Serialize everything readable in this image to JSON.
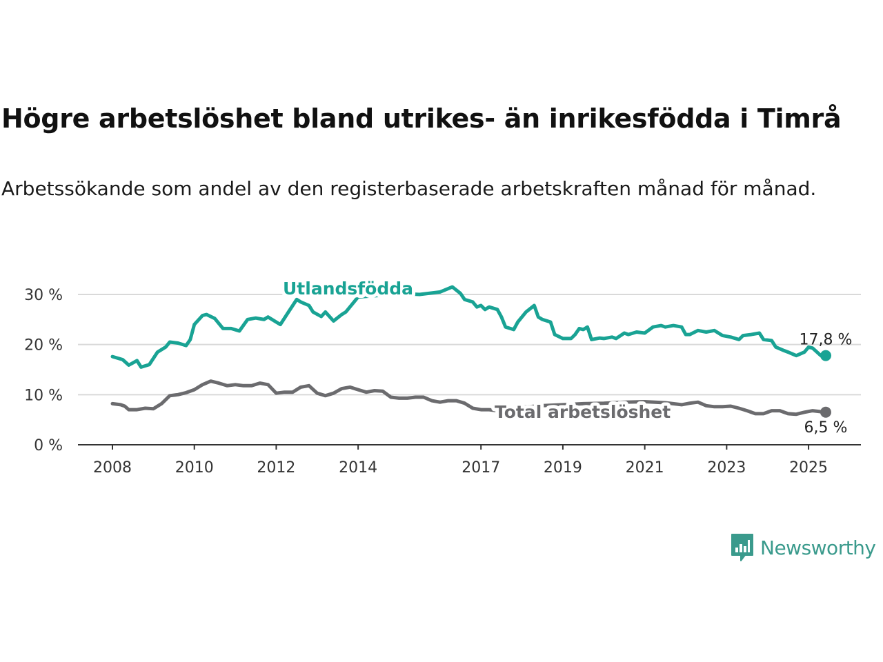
{
  "header": {
    "title": "Högre arbetslöshet bland utrikes- än inrikesfödda i Timrå",
    "subtitle": "Arbetssökande som andel av den registerbaserade arbetskraften månad för månad."
  },
  "brand": {
    "name": "Newsworthy",
    "icon": "newsworthy-logo-icon",
    "color": "#3a9a8c"
  },
  "chart_data": {
    "type": "line",
    "title": "Högre arbetslöshet bland utrikes- än inrikesfödda i Timrå",
    "subtitle": "Arbetssökande som andel av den registerbaserade arbetskraften månad för månad.",
    "xlabel": "",
    "ylabel": "",
    "x_range": [
      2008.0,
      2025.42
    ],
    "ylim": [
      0,
      30
    ],
    "x_ticks": [
      {
        "value": 2008,
        "label": "2008"
      },
      {
        "value": 2010,
        "label": "2010"
      },
      {
        "value": 2012,
        "label": "2012"
      },
      {
        "value": 2014,
        "label": "2014"
      },
      {
        "value": 2017,
        "label": "2017"
      },
      {
        "value": 2019,
        "label": "2019"
      },
      {
        "value": 2021,
        "label": "2021"
      },
      {
        "value": 2023,
        "label": "2023"
      },
      {
        "value": 2025,
        "label": "2025"
      }
    ],
    "y_ticks": [
      {
        "value": 0,
        "label": "0 %"
      },
      {
        "value": 10,
        "label": "10 %"
      },
      {
        "value": 20,
        "label": "20 %"
      },
      {
        "value": 30,
        "label": "30 %"
      }
    ],
    "grid": "horizontal",
    "series": [
      {
        "name": "Utlandsfödda",
        "color": "#19a394",
        "end_label": "17,8 %",
        "points": [
          [
            2008.0,
            17.6
          ],
          [
            2008.25,
            17.0
          ],
          [
            2008.4,
            15.9
          ],
          [
            2008.6,
            16.8
          ],
          [
            2008.7,
            15.5
          ],
          [
            2008.9,
            16.0
          ],
          [
            2009.1,
            18.5
          ],
          [
            2009.3,
            19.5
          ],
          [
            2009.4,
            20.5
          ],
          [
            2009.6,
            20.3
          ],
          [
            2009.8,
            19.8
          ],
          [
            2009.9,
            21.0
          ],
          [
            2010.0,
            24.0
          ],
          [
            2010.2,
            25.8
          ],
          [
            2010.3,
            26.0
          ],
          [
            2010.5,
            25.2
          ],
          [
            2010.7,
            23.2
          ],
          [
            2010.9,
            23.2
          ],
          [
            2011.1,
            22.7
          ],
          [
            2011.3,
            25.0
          ],
          [
            2011.5,
            25.3
          ],
          [
            2011.7,
            25.0
          ],
          [
            2011.8,
            25.5
          ],
          [
            2012.0,
            24.5
          ],
          [
            2012.1,
            24.0
          ],
          [
            2012.3,
            26.5
          ],
          [
            2012.5,
            29.0
          ],
          [
            2012.6,
            28.5
          ],
          [
            2012.8,
            27.8
          ],
          [
            2012.9,
            26.5
          ],
          [
            2013.1,
            25.6
          ],
          [
            2013.2,
            26.5
          ],
          [
            2013.4,
            24.7
          ],
          [
            2013.6,
            26.0
          ],
          [
            2013.7,
            26.5
          ],
          [
            2013.9,
            28.5
          ],
          [
            2014.0,
            29.5
          ],
          [
            2014.5,
            29.8
          ],
          [
            2015.0,
            30.2
          ],
          [
            2015.5,
            30.0
          ],
          [
            2016.0,
            30.5
          ],
          [
            2016.3,
            31.5
          ],
          [
            2016.5,
            30.2
          ],
          [
            2016.6,
            29.0
          ],
          [
            2016.8,
            28.5
          ],
          [
            2016.9,
            27.5
          ],
          [
            2017.0,
            27.8
          ],
          [
            2017.1,
            27.0
          ],
          [
            2017.2,
            27.5
          ],
          [
            2017.4,
            27.0
          ],
          [
            2017.5,
            25.5
          ],
          [
            2017.6,
            23.5
          ],
          [
            2017.8,
            23.0
          ],
          [
            2017.9,
            24.5
          ],
          [
            2018.1,
            26.5
          ],
          [
            2018.3,
            27.8
          ],
          [
            2018.4,
            25.5
          ],
          [
            2018.5,
            25.0
          ],
          [
            2018.7,
            24.5
          ],
          [
            2018.8,
            22.0
          ],
          [
            2019.0,
            21.2
          ],
          [
            2019.2,
            21.2
          ],
          [
            2019.3,
            22.0
          ],
          [
            2019.4,
            23.2
          ],
          [
            2019.5,
            23.0
          ],
          [
            2019.6,
            23.5
          ],
          [
            2019.7,
            21.0
          ],
          [
            2019.9,
            21.3
          ],
          [
            2020.0,
            21.2
          ],
          [
            2020.2,
            21.5
          ],
          [
            2020.3,
            21.2
          ],
          [
            2020.5,
            22.3
          ],
          [
            2020.6,
            22.0
          ],
          [
            2020.8,
            22.5
          ],
          [
            2021.0,
            22.3
          ],
          [
            2021.2,
            23.5
          ],
          [
            2021.4,
            23.8
          ],
          [
            2021.5,
            23.5
          ],
          [
            2021.7,
            23.8
          ],
          [
            2021.9,
            23.5
          ],
          [
            2022.0,
            22.0
          ],
          [
            2022.1,
            22.0
          ],
          [
            2022.3,
            22.8
          ],
          [
            2022.5,
            22.5
          ],
          [
            2022.7,
            22.8
          ],
          [
            2022.9,
            21.8
          ],
          [
            2023.1,
            21.5
          ],
          [
            2023.3,
            21.0
          ],
          [
            2023.4,
            21.8
          ],
          [
            2023.6,
            22.0
          ],
          [
            2023.8,
            22.3
          ],
          [
            2023.9,
            21.0
          ],
          [
            2024.1,
            20.8
          ],
          [
            2024.2,
            19.5
          ],
          [
            2024.4,
            18.8
          ],
          [
            2024.5,
            18.5
          ],
          [
            2024.7,
            17.8
          ],
          [
            2024.9,
            18.5
          ],
          [
            2025.0,
            19.5
          ],
          [
            2025.1,
            19.3
          ],
          [
            2025.3,
            17.8
          ],
          [
            2025.42,
            17.8
          ]
        ]
      },
      {
        "name": "Total arbetslöshet",
        "color": "#6b6b6e",
        "end_label": "6,5 %",
        "points": [
          [
            2008.0,
            8.2
          ],
          [
            2008.2,
            8.0
          ],
          [
            2008.3,
            7.7
          ],
          [
            2008.4,
            7.0
          ],
          [
            2008.6,
            7.0
          ],
          [
            2008.8,
            7.3
          ],
          [
            2009.0,
            7.2
          ],
          [
            2009.2,
            8.2
          ],
          [
            2009.4,
            9.8
          ],
          [
            2009.6,
            10.0
          ],
          [
            2009.8,
            10.4
          ],
          [
            2010.0,
            11.0
          ],
          [
            2010.2,
            12.0
          ],
          [
            2010.4,
            12.7
          ],
          [
            2010.6,
            12.3
          ],
          [
            2010.8,
            11.8
          ],
          [
            2011.0,
            12.0
          ],
          [
            2011.2,
            11.8
          ],
          [
            2011.4,
            11.8
          ],
          [
            2011.6,
            12.3
          ],
          [
            2011.8,
            12.0
          ],
          [
            2012.0,
            10.3
          ],
          [
            2012.2,
            10.5
          ],
          [
            2012.4,
            10.5
          ],
          [
            2012.6,
            11.5
          ],
          [
            2012.8,
            11.8
          ],
          [
            2013.0,
            10.3
          ],
          [
            2013.2,
            9.8
          ],
          [
            2013.4,
            10.3
          ],
          [
            2013.6,
            11.2
          ],
          [
            2013.8,
            11.5
          ],
          [
            2014.0,
            11.0
          ],
          [
            2014.2,
            10.5
          ],
          [
            2014.4,
            10.8
          ],
          [
            2014.6,
            10.7
          ],
          [
            2014.8,
            9.5
          ],
          [
            2015.0,
            9.3
          ],
          [
            2015.2,
            9.3
          ],
          [
            2015.4,
            9.5
          ],
          [
            2015.6,
            9.5
          ],
          [
            2015.8,
            8.8
          ],
          [
            2016.0,
            8.5
          ],
          [
            2016.2,
            8.8
          ],
          [
            2016.4,
            8.8
          ],
          [
            2016.6,
            8.3
          ],
          [
            2016.8,
            7.3
          ],
          [
            2017.0,
            7.0
          ],
          [
            2017.2,
            7.0
          ],
          [
            2017.4,
            6.8
          ],
          [
            2017.6,
            7.0
          ],
          [
            2018.0,
            7.5
          ],
          [
            2018.5,
            7.8
          ],
          [
            2019.0,
            8.0
          ],
          [
            2019.5,
            8.2
          ],
          [
            2020.0,
            8.3
          ],
          [
            2020.5,
            8.5
          ],
          [
            2021.0,
            8.6
          ],
          [
            2021.5,
            8.4
          ],
          [
            2021.9,
            8.0
          ],
          [
            2022.1,
            8.3
          ],
          [
            2022.3,
            8.5
          ],
          [
            2022.5,
            7.8
          ],
          [
            2022.7,
            7.6
          ],
          [
            2022.9,
            7.6
          ],
          [
            2023.1,
            7.7
          ],
          [
            2023.3,
            7.3
          ],
          [
            2023.5,
            6.8
          ],
          [
            2023.7,
            6.2
          ],
          [
            2023.9,
            6.2
          ],
          [
            2024.1,
            6.8
          ],
          [
            2024.3,
            6.8
          ],
          [
            2024.5,
            6.2
          ],
          [
            2024.7,
            6.1
          ],
          [
            2024.9,
            6.5
          ],
          [
            2025.1,
            6.8
          ],
          [
            2025.3,
            6.6
          ],
          [
            2025.42,
            6.5
          ]
        ]
      }
    ]
  }
}
